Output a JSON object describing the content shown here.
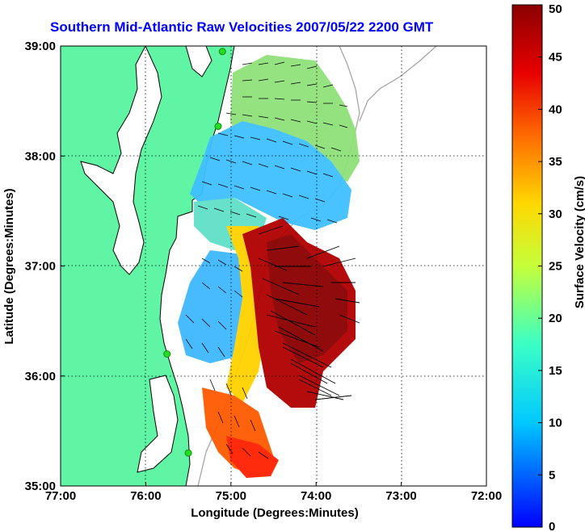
{
  "title": "Southern Mid-Atlantic Raw Velocities 2007/05/22 2200 GMT",
  "chart_data": {
    "type": "heatmap",
    "title": "Southern Mid-Atlantic Raw Velocities 2007/05/22 2200 GMT",
    "xlabel": "Longitude (Degrees:Minutes)",
    "ylabel": "Latitude (Degrees:Minutes)",
    "xlim": [
      -77,
      -72
    ],
    "ylim": [
      35,
      39
    ],
    "x_ticks": [
      -77,
      -76,
      -75,
      -74,
      -73,
      -72
    ],
    "x_tick_labels": [
      "77:00",
      "76:00",
      "75:00",
      "74:00",
      "73:00",
      "72:00"
    ],
    "y_ticks": [
      35,
      36,
      37,
      38,
      39
    ],
    "y_tick_labels": [
      "35:00",
      "36:00",
      "37:00",
      "38:00",
      "39:00"
    ],
    "grid": "dotted",
    "colorbar": {
      "label": "Surface Velocity (cm/s)",
      "range": [
        0,
        50
      ],
      "ticks": [
        0,
        5,
        10,
        15,
        20,
        25,
        30,
        35,
        40,
        45,
        50
      ],
      "colormap": "jet"
    },
    "colors": {
      "land": "#5ff5a4",
      "coast_outline": "#000000",
      "bathymetry": "#a0a0a0",
      "stations": "#22dd22"
    },
    "stations": [
      {
        "lon": -75.1,
        "lat": 38.95
      },
      {
        "lon": -75.15,
        "lat": 38.27
      },
      {
        "lon": -75.75,
        "lat": 36.2
      },
      {
        "lon": -75.5,
        "lat": 35.3
      }
    ]
  }
}
